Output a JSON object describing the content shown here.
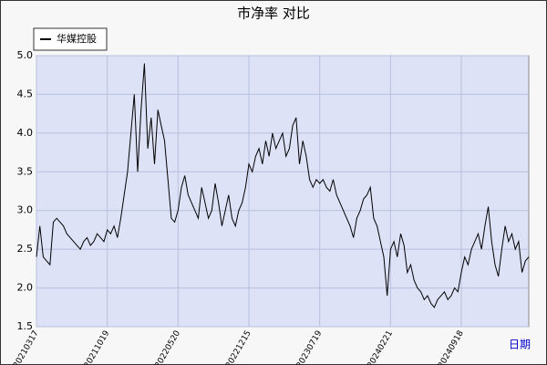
{
  "chart_data": {
    "type": "line",
    "title": "市净率  对比",
    "x_label": "日期",
    "legend": "upper left",
    "grid": true,
    "categories": [
      "20210317",
      null,
      null,
      null,
      null,
      null,
      null,
      null,
      null,
      null,
      null,
      null,
      null,
      null,
      null,
      null,
      null,
      null,
      null,
      null,
      null,
      "20211019",
      null,
      null,
      null,
      null,
      null,
      null,
      null,
      null,
      null,
      null,
      null,
      null,
      null,
      null,
      null,
      null,
      null,
      null,
      null,
      null,
      "20220520",
      null,
      null,
      null,
      null,
      null,
      null,
      null,
      null,
      null,
      null,
      null,
      null,
      null,
      null,
      null,
      null,
      null,
      null,
      null,
      null,
      "20221215",
      null,
      null,
      null,
      null,
      null,
      null,
      null,
      null,
      null,
      null,
      null,
      null,
      null,
      null,
      null,
      null,
      null,
      null,
      null,
      null,
      "20230719",
      null,
      null,
      null,
      null,
      null,
      null,
      null,
      null,
      null,
      null,
      null,
      null,
      null,
      null,
      null,
      null,
      null,
      null,
      null,
      null,
      "20240221",
      null,
      null,
      null,
      null,
      null,
      null,
      null,
      null,
      null,
      null,
      null,
      null,
      null,
      null,
      null,
      null,
      null,
      null,
      null,
      null,
      "20240918",
      null,
      null,
      null,
      null,
      null,
      null,
      null,
      null,
      null,
      null,
      null,
      null,
      null,
      null,
      null,
      null,
      null,
      null,
      null,
      null
    ],
    "series": [
      {
        "name": "华媒控股",
        "color": "#000000",
        "values": [
          2.4,
          2.8,
          2.4,
          2.35,
          2.3,
          2.85,
          2.9,
          2.85,
          2.8,
          2.7,
          2.65,
          2.6,
          2.55,
          2.5,
          2.6,
          2.65,
          2.55,
          2.6,
          2.7,
          2.65,
          2.6,
          2.75,
          2.7,
          2.8,
          2.65,
          2.9,
          3.2,
          3.5,
          4.0,
          4.5,
          3.5,
          4.3,
          4.9,
          3.8,
          4.2,
          3.6,
          4.3,
          4.1,
          3.9,
          3.4,
          2.9,
          2.85,
          3.0,
          3.3,
          3.45,
          3.2,
          3.1,
          3.0,
          2.9,
          3.3,
          3.1,
          2.9,
          3.0,
          3.35,
          3.1,
          2.8,
          3.0,
          3.2,
          2.9,
          2.8,
          3.0,
          3.1,
          3.3,
          3.6,
          3.5,
          3.7,
          3.8,
          3.6,
          3.9,
          3.7,
          4.0,
          3.8,
          3.9,
          4.0,
          3.7,
          3.8,
          4.1,
          4.2,
          3.6,
          3.9,
          3.7,
          3.4,
          3.3,
          3.4,
          3.35,
          3.4,
          3.3,
          3.25,
          3.4,
          3.2,
          3.1,
          3.0,
          2.9,
          2.8,
          2.65,
          2.9,
          3.0,
          3.15,
          3.2,
          3.3,
          2.9,
          2.8,
          2.6,
          2.4,
          1.9,
          2.5,
          2.6,
          2.4,
          2.7,
          2.55,
          2.2,
          2.3,
          2.1,
          2.0,
          1.95,
          1.85,
          1.9,
          1.8,
          1.75,
          1.85,
          1.9,
          1.95,
          1.85,
          1.9,
          2.0,
          1.95,
          2.2,
          2.4,
          2.3,
          2.5,
          2.6,
          2.7,
          2.5,
          2.8,
          3.05,
          2.6,
          2.3,
          2.15,
          2.5,
          2.8,
          2.6,
          2.7,
          2.5,
          2.6,
          2.2,
          2.35,
          2.4
        ]
      }
    ],
    "ylim": [
      1.5,
      5.0
    ],
    "yticks": [
      {
        "value": 1.5,
        "label": "1.5"
      },
      {
        "value": 2,
        "label": "2.0"
      },
      {
        "value": 2.5,
        "label": "2.5"
      },
      {
        "value": 3,
        "label": "3.0"
      },
      {
        "value": 3.5,
        "label": "3.5"
      },
      {
        "value": 4,
        "label": "4.0"
      },
      {
        "value": 4.5,
        "label": "4.5"
      },
      {
        "value": 5,
        "label": "5.0"
      }
    ]
  }
}
